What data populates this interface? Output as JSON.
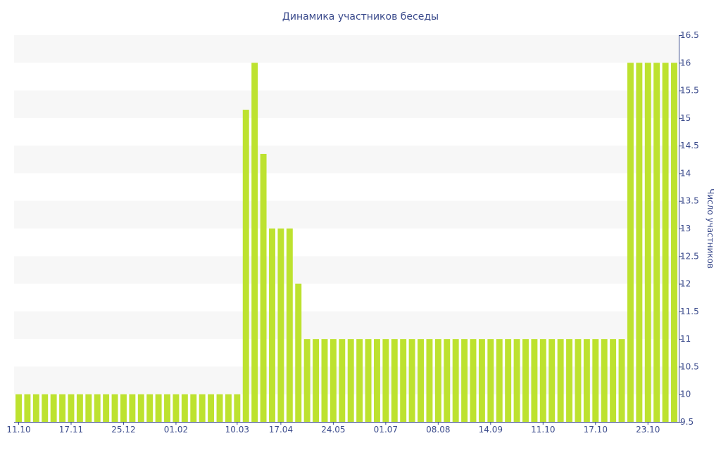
{
  "chart_data": {
    "type": "bar",
    "title": "Динамика участников беседы",
    "xlabel": "",
    "ylabel": "Число участников",
    "ylim": [
      9.5,
      16.5
    ],
    "yticks": [
      "9.5",
      "10",
      "10.5",
      "11",
      "11.5",
      "12",
      "12.5",
      "13",
      "13.5",
      "14",
      "14.5",
      "15",
      "15.5",
      "16",
      "16.5"
    ],
    "ytick_values": [
      9.5,
      10,
      10.5,
      11,
      11.5,
      12,
      12.5,
      13,
      13.5,
      14,
      14.5,
      15,
      15.5,
      16,
      16.5
    ],
    "yaxis_position": "right",
    "grid": "alternating-horizontal-bands",
    "bar_color": "#bde22f",
    "band_color": "#f7f7f7",
    "text_color": "#3b4b8c",
    "xtick_labels": [
      "11.10",
      "17.11",
      "25.12",
      "01.02",
      "10.03",
      "17.04",
      "24.05",
      "01.07",
      "08.08",
      "14.09",
      "11.10",
      "17.10",
      "23.10"
    ],
    "xtick_bar_index": [
      0,
      6,
      12,
      18,
      25,
      30,
      36,
      42,
      48,
      54,
      60,
      66,
      72
    ],
    "values": [
      10,
      10,
      10,
      10,
      10,
      10,
      10,
      10,
      10,
      10,
      10,
      10,
      10,
      10,
      10,
      10,
      10,
      10,
      10,
      10,
      10,
      10,
      10,
      10,
      10,
      10,
      15.15,
      16,
      14.35,
      13,
      13,
      13,
      12,
      11,
      11,
      11,
      11,
      11,
      11,
      11,
      11,
      11,
      11,
      11,
      11,
      11,
      11,
      11,
      11,
      11,
      11,
      11,
      11,
      11,
      11,
      11,
      11,
      11,
      11,
      11,
      11,
      11,
      11,
      11,
      11,
      11,
      11,
      11,
      11,
      11,
      16,
      16,
      16,
      16,
      16,
      16
    ]
  }
}
